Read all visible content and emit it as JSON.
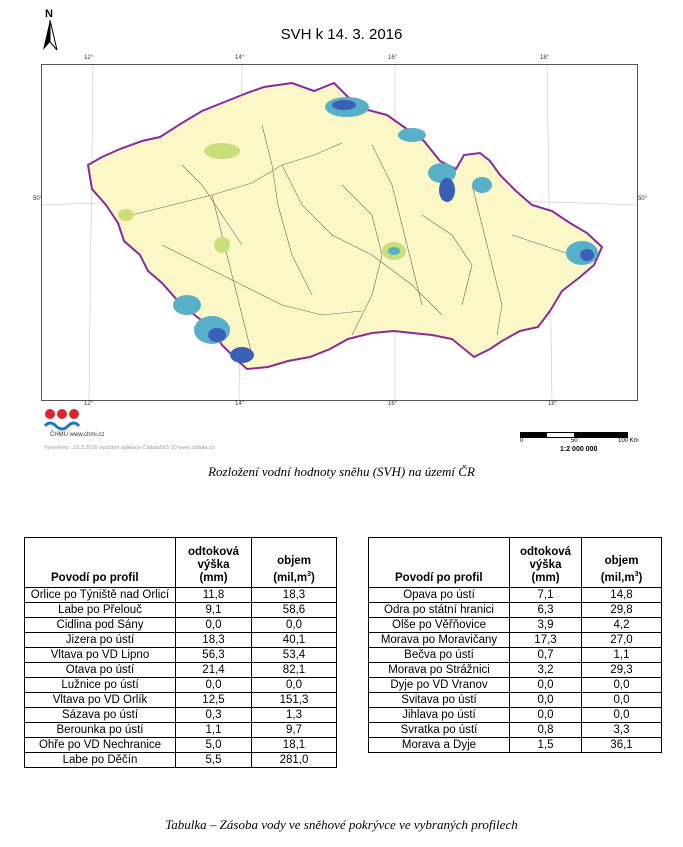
{
  "map": {
    "title": "SVH k 14. 3. 2016",
    "north_label": "N",
    "ticks": {
      "top_lon": [
        "12°",
        "14°",
        "16°",
        "18°"
      ],
      "bottom_lon": [
        "12°",
        "14°",
        "16°",
        "18°"
      ],
      "lat": "50°"
    },
    "agency": "ČHMÚ www.chmi.cz",
    "credit": "Vytvořeno : 15.3.2016 využitím aplikace ClidataGIS 10 www.clidata.cz",
    "scale": {
      "zero": "0",
      "mid": "50",
      "end": "100 Km",
      "ratio": "1:2 000 000"
    },
    "colors": {
      "background": "#fbf7c7",
      "border": "#8a2a9a",
      "rivers": "#7b6a55",
      "snow_high": "#3a5fb8",
      "snow_mid": "#58b0c8",
      "snow_low": "#c9e07a"
    }
  },
  "map_caption": "Rozložení vodní hodnoty sněhu (SVH) na území ČR",
  "table_left": {
    "headers": [
      "Povodí po profil",
      "odtoková výška (mm)",
      "objem (mil,m3)"
    ],
    "rows": [
      [
        "Orlice po Týniště nad Orlicí",
        "11,8",
        "18,3"
      ],
      [
        "Labe po Přelouč",
        "9,1",
        "58,6"
      ],
      [
        "Cidlina pod Sány",
        "0,0",
        "0,0"
      ],
      [
        "Jizera po ústí",
        "18,3",
        "40,1"
      ],
      [
        "Vltava po VD Lipno",
        "56,3",
        "53,4"
      ],
      [
        "Otava po ústí",
        "21,4",
        "82,1"
      ],
      [
        "Lužnice po ústí",
        "0,0",
        "0,0"
      ],
      [
        "Vltava po VD Orlík",
        "12,5",
        "151,3"
      ],
      [
        "Sázava po ústí",
        "0,3",
        "1,3"
      ],
      [
        "Berounka po ústí",
        "1,1",
        "9,7"
      ],
      [
        "Ohře po VD Nechranice",
        "5,0",
        "18,1"
      ],
      [
        "Labe po Děčín",
        "5,5",
        "281,0"
      ]
    ]
  },
  "table_right": {
    "headers": [
      "Povodí po profil",
      "odtoková výška (mm)",
      "objem (mil,m3)"
    ],
    "rows": [
      [
        "Opava po ústí",
        "7,1",
        "14,8"
      ],
      [
        "Odra po státní hranici",
        "6,3",
        "29,8"
      ],
      [
        "Olše po Věřňovice",
        "3,9",
        "4,2"
      ],
      [
        "Morava po Moravičany",
        "17,3",
        "27,0"
      ],
      [
        "Bečva po ústí",
        "0,7",
        "1,1"
      ],
      [
        "Morava po Strážnici",
        "3,2",
        "29,3"
      ],
      [
        "Dyje po VD Vranov",
        "0,0",
        "0,0"
      ],
      [
        "Svitava po ústí",
        "0,0",
        "0,0"
      ],
      [
        "Jihlava po ústí",
        "0,0",
        "0,0"
      ],
      [
        "Svratka po ústí",
        "0,8",
        "3,3"
      ],
      [
        "Morava a Dyje",
        "1,5",
        "36,1"
      ]
    ]
  },
  "table_caption": "Tabulka – Zásoba vody ve sněhové pokrývce ve vybraných profilech"
}
